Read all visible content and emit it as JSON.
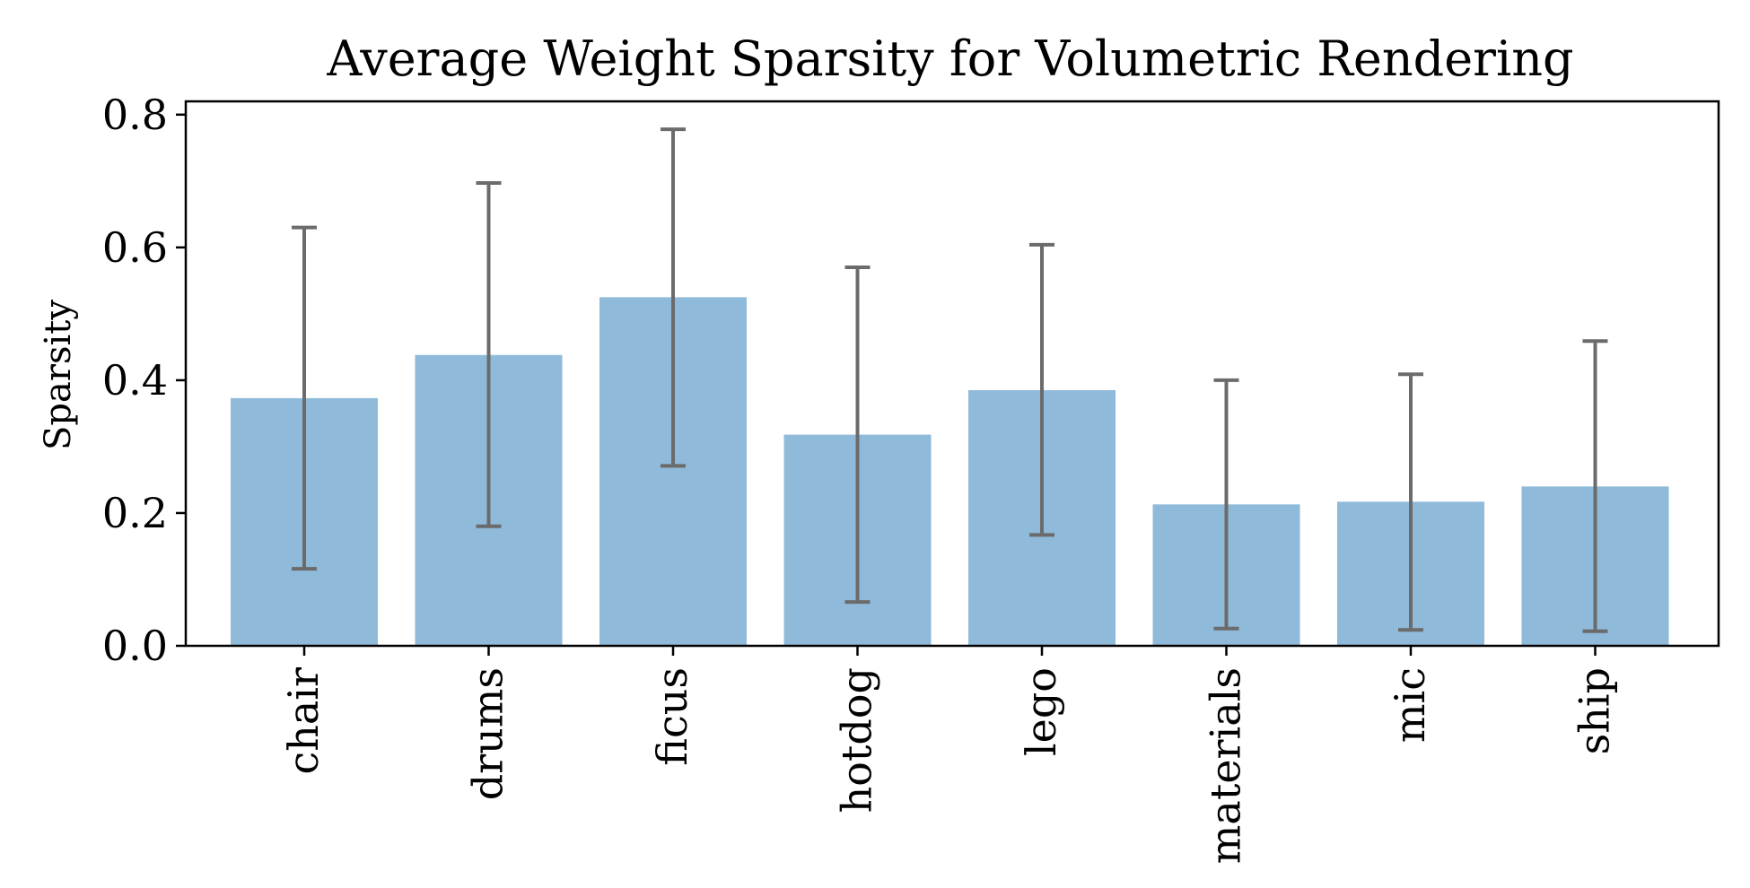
{
  "chart_data": {
    "type": "bar",
    "title": "Average Weight Sparsity for Volumetric Rendering",
    "xlabel": "",
    "ylabel": "Sparsity",
    "categories": [
      "chair",
      "drums",
      "ficus",
      "hotdog",
      "lego",
      "materials",
      "mic",
      "ship"
    ],
    "values": [
      0.373,
      0.438,
      0.525,
      0.318,
      0.385,
      0.213,
      0.217,
      0.24
    ],
    "error_low": [
      0.116,
      0.18,
      0.271,
      0.066,
      0.167,
      0.026,
      0.024,
      0.022
    ],
    "error_high": [
      0.63,
      0.697,
      0.778,
      0.57,
      0.604,
      0.4,
      0.409,
      0.459
    ],
    "ylim": [
      0.0,
      0.82
    ],
    "yticks": [
      0.0,
      0.2,
      0.4,
      0.6,
      0.8
    ],
    "ytick_labels": [
      "0.0",
      "0.2",
      "0.4",
      "0.6",
      "0.8"
    ],
    "grid": false,
    "legend": "none",
    "colors": {
      "bar": "#8fbada",
      "error_bar": "#6b6b6b",
      "axis": "#000000"
    }
  }
}
